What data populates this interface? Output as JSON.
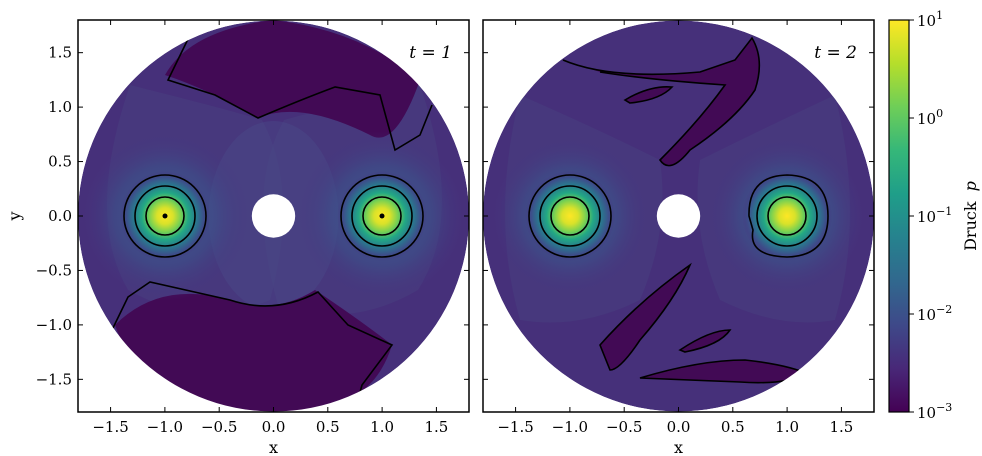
{
  "chart_data": [
    {
      "type": "heatmap",
      "annotation": "t = 1",
      "xlabel": "x",
      "ylabel": "y",
      "xlim": [
        -1.8,
        1.8
      ],
      "ylim": [
        -1.8,
        1.8
      ],
      "xticks": [
        -1.5,
        -1.0,
        -0.5,
        0.0,
        0.5,
        1.0,
        1.5
      ],
      "xtick_labels": [
        "−1.5",
        "−1.0",
        "−0.5",
        "0.0",
        "0.5",
        "1.0",
        "1.5"
      ],
      "yticks": [
        1.5,
        1.0,
        0.5,
        0.0,
        -0.5,
        -1.0,
        -1.5
      ],
      "ytick_labels": [
        "1.5",
        "1.0",
        "0.5",
        "0.0",
        "−0.5",
        "−1.0",
        "−1.5"
      ],
      "domain": {
        "center": [
          0,
          0
        ],
        "outer_radius": 1.8,
        "inner_radius": 0.2
      },
      "pressure_peaks": [
        {
          "x": -1.0,
          "y": 0.0,
          "value": 10
        },
        {
          "x": 1.0,
          "y": 0.0,
          "value": 10
        }
      ],
      "contour_radii": [
        0.38,
        0.28,
        0.18,
        0.02
      ]
    },
    {
      "type": "heatmap",
      "annotation": "t = 2",
      "xlabel": "x",
      "ylabel": "",
      "xlim": [
        -1.8,
        1.8
      ],
      "ylim": [
        -1.8,
        1.8
      ],
      "xticks": [
        -1.5,
        -1.0,
        -0.5,
        0.0,
        0.5,
        1.0,
        1.5
      ],
      "xtick_labels": [
        "−1.5",
        "−1.0",
        "−0.5",
        "0.0",
        "0.5",
        "1.0",
        "1.5"
      ],
      "domain": {
        "center": [
          0,
          0
        ],
        "outer_radius": 1.8,
        "inner_radius": 0.2
      },
      "pressure_peaks": [
        {
          "x": -1.0,
          "y": 0.0,
          "value": 10
        },
        {
          "x": 1.0,
          "y": 0.0,
          "value": 10
        }
      ],
      "contour_radii": [
        0.38,
        0.28,
        0.18
      ]
    }
  ],
  "colorbar": {
    "label": "Druck",
    "label_symbol": "p",
    "scale": "log",
    "range": [
      0.001,
      10
    ],
    "ticks": [
      {
        "value": 10,
        "base": "10",
        "exp": "1"
      },
      {
        "value": 1,
        "base": "10",
        "exp": "0"
      },
      {
        "value": 0.1,
        "base": "10",
        "exp": "−1"
      },
      {
        "value": 0.01,
        "base": "10",
        "exp": "−2"
      },
      {
        "value": 0.001,
        "base": "10",
        "exp": "−3"
      }
    ],
    "colors": [
      "#440154",
      "#482878",
      "#3e4989",
      "#31688e",
      "#26828e",
      "#1f9e89",
      "#35b779",
      "#6ece58",
      "#b5de2b",
      "#fde725"
    ]
  },
  "colors": {
    "background": "#440154",
    "mid": "#433d84",
    "contour": "#000000"
  }
}
